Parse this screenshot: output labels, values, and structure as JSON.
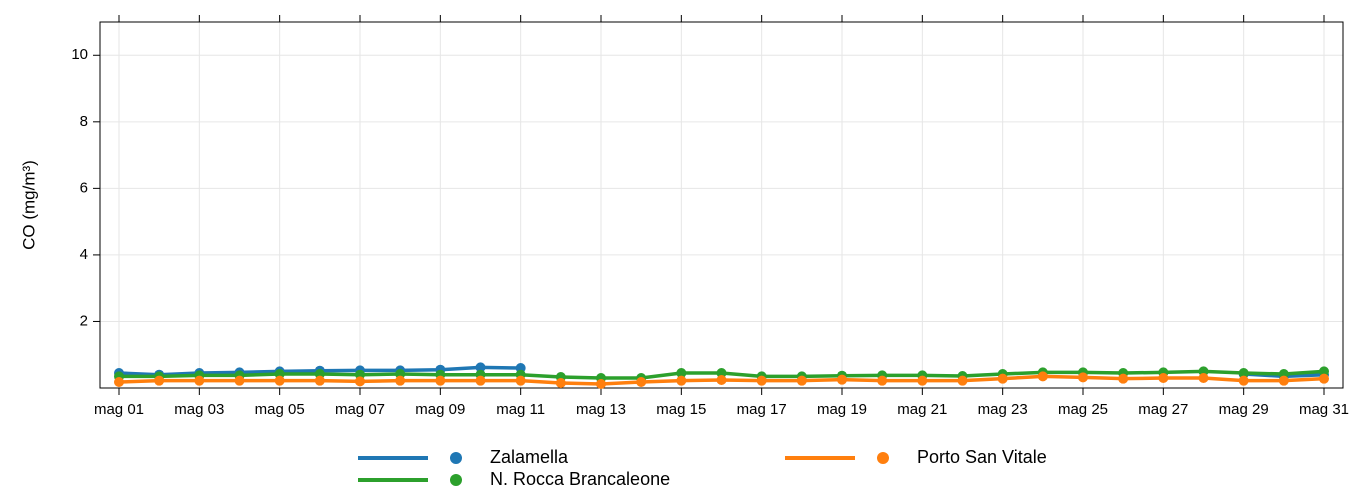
{
  "chart_data": {
    "type": "line",
    "y_label": "CO (mg/m³)",
    "categories": [
      "mag 01",
      null,
      "mag 03",
      null,
      "mag 05",
      null,
      "mag 07",
      null,
      "mag 09",
      null,
      "mag 11",
      null,
      "mag 13",
      null,
      "mag 15",
      null,
      "mag 17",
      null,
      "mag 19",
      null,
      "mag 21",
      null,
      "mag 23",
      null,
      "mag 25",
      null,
      "mag 27",
      null,
      "mag 29",
      null,
      "mag 31"
    ],
    "series": [
      {
        "name": "Zalamella",
        "color": "#1f77b4",
        "values": [
          0.45,
          0.4,
          0.45,
          0.47,
          0.5,
          0.52,
          0.53,
          0.53,
          0.55,
          0.62,
          0.6,
          null,
          null,
          null,
          null,
          null,
          null,
          null,
          null,
          null,
          null,
          null,
          null,
          null,
          null,
          null,
          null,
          null,
          0.42,
          0.35,
          0.4
        ]
      },
      {
        "name": "N. Rocca Brancaleone",
        "color": "#2ca02c",
        "values": [
          0.35,
          0.35,
          0.38,
          0.38,
          0.42,
          0.42,
          0.4,
          0.42,
          0.4,
          0.4,
          0.4,
          0.33,
          0.3,
          0.3,
          0.45,
          0.45,
          0.35,
          0.35,
          0.37,
          0.38,
          0.38,
          0.36,
          0.42,
          0.47,
          0.47,
          0.45,
          0.47,
          0.5,
          0.45,
          0.42,
          0.5
        ]
      },
      {
        "name": "Porto San Vitale",
        "color": "#ff7f0e",
        "values": [
          0.18,
          0.22,
          0.22,
          0.22,
          0.22,
          0.22,
          0.2,
          0.22,
          0.22,
          0.22,
          0.22,
          0.15,
          0.12,
          0.18,
          0.22,
          0.24,
          0.22,
          0.22,
          0.25,
          0.22,
          0.22,
          0.22,
          0.28,
          0.35,
          0.32,
          0.28,
          0.3,
          0.3,
          0.22,
          0.22,
          0.28
        ]
      }
    ],
    "ylim": [
      0,
      11
    ],
    "yticks": [
      2,
      4,
      6,
      8,
      10
    ],
    "grid": true
  }
}
